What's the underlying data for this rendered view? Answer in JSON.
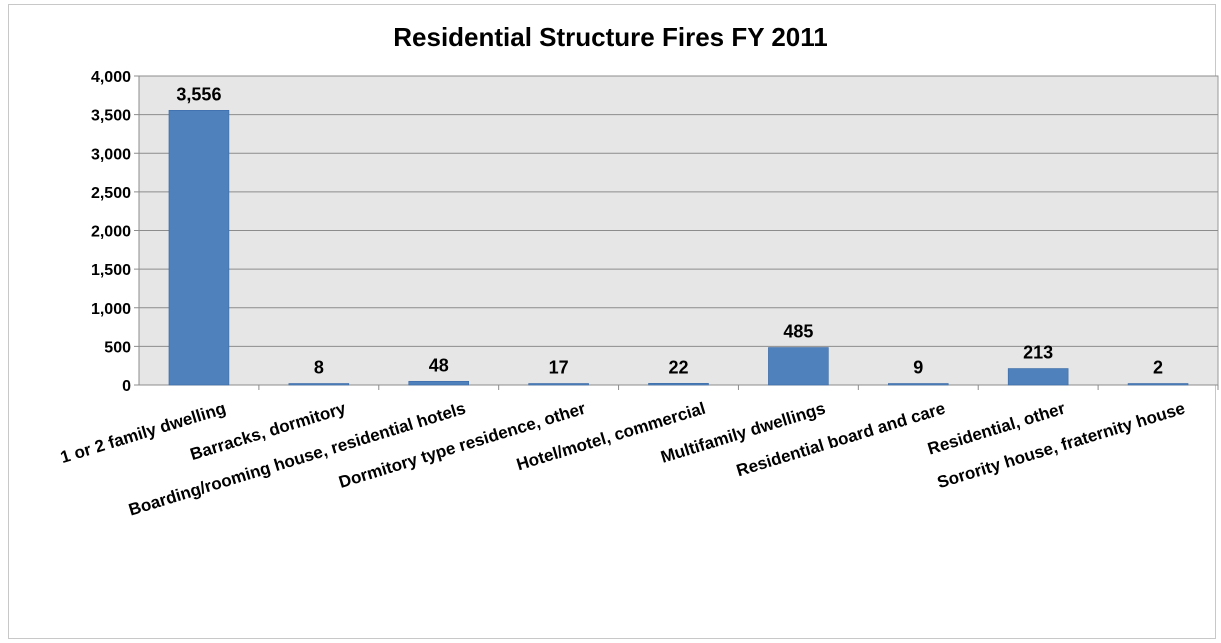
{
  "chart_data": {
    "type": "bar",
    "title": "Residential Structure Fires FY 2011",
    "categories": [
      "1 or 2 family dwelling",
      "Barracks, dormitory",
      "Boarding/rooming house, residential hotels",
      "Dormitory type residence, other",
      "Hotel/motel, commercial",
      "Multifamily dwellings",
      "Residential board and care",
      "Residential, other",
      "Sorority house, fraternity house"
    ],
    "values": [
      3556,
      8,
      48,
      17,
      22,
      485,
      9,
      213,
      2
    ],
    "value_labels": [
      "3,556",
      "8",
      "48",
      "17",
      "22",
      "485",
      "9",
      "213",
      "2"
    ],
    "ylim": [
      0,
      4000
    ],
    "yticks": [
      0,
      500,
      1000,
      1500,
      2000,
      2500,
      3000,
      3500,
      4000
    ],
    "ytick_labels": [
      "0",
      "500",
      "1,000",
      "1,500",
      "2,000",
      "2,500",
      "3,000",
      "3,500",
      "4,000"
    ],
    "xlabel": "",
    "ylabel": "",
    "grid": true,
    "bar_color": "#4f81bd",
    "plot_background": "#e6e6e6"
  }
}
